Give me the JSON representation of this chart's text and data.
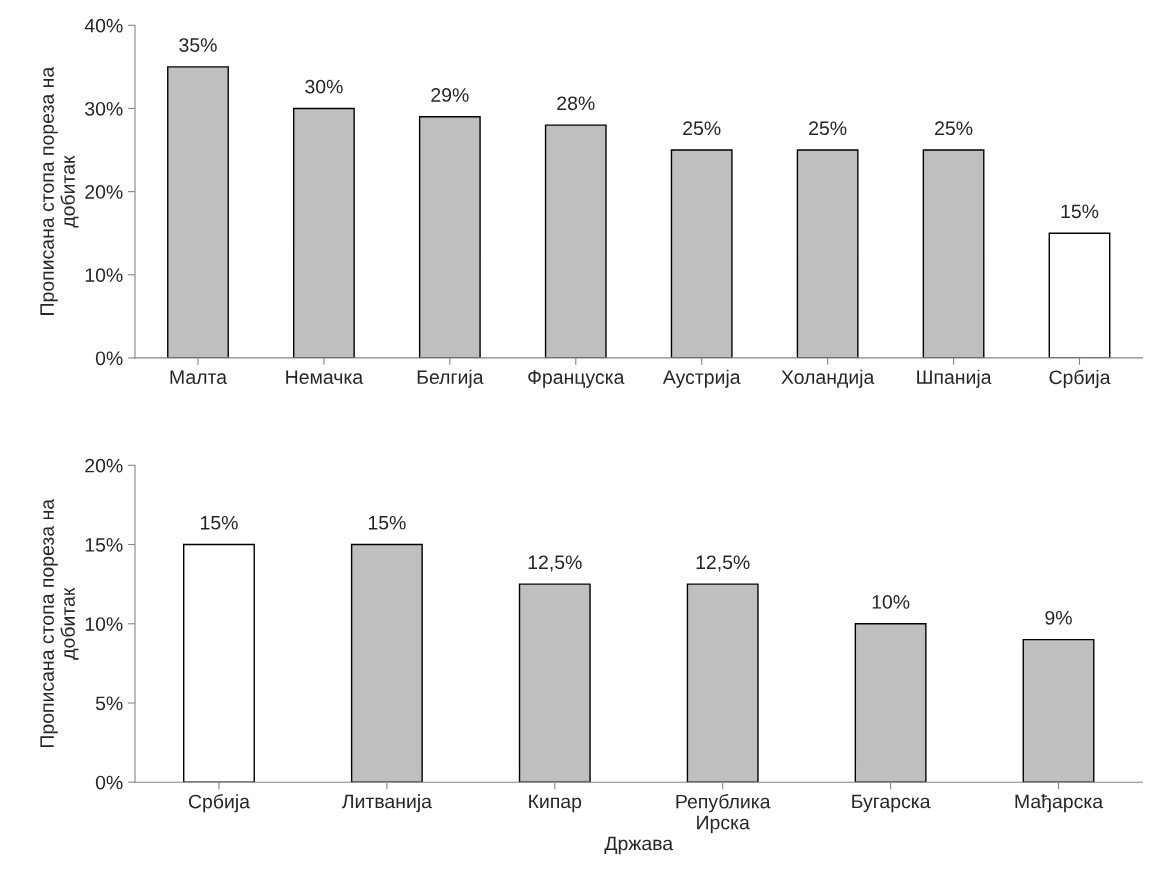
{
  "chart_data": [
    {
      "type": "bar",
      "ylabel": "Прописана стопа пореза на\nдобитак",
      "categories": [
        "Малта",
        "Немачка",
        "Белгија",
        "Француска",
        "Аустрија",
        "Холандија",
        "Шпанија",
        "Србија"
      ],
      "values": [
        35,
        30,
        29,
        28,
        25,
        25,
        25,
        15
      ],
      "colors": [
        "#bfbfbf",
        "#bfbfbf",
        "#bfbfbf",
        "#bfbfbf",
        "#bfbfbf",
        "#bfbfbf",
        "#bfbfbf",
        "#ffffff"
      ],
      "value_labels": [
        "35%",
        "30%",
        "29%",
        "28%",
        "25%",
        "25%",
        "25%",
        "15%"
      ],
      "ylim": [
        0,
        40
      ],
      "yticks": [
        {
          "value": 0,
          "label": "0%"
        },
        {
          "value": 10,
          "label": "10%"
        },
        {
          "value": 20,
          "label": "20%"
        },
        {
          "value": 30,
          "label": "30%"
        },
        {
          "value": 40,
          "label": "40%"
        }
      ],
      "grid": false,
      "legend": false
    },
    {
      "type": "bar",
      "ylabel": "Прописана стопа пореза на\nдобитак",
      "xlabel": "Држава",
      "categories": [
        "Србија",
        "Литванија",
        "Кипар",
        "Република\nИрска",
        "Бугарска",
        "Мађарска"
      ],
      "values": [
        15,
        15,
        12.5,
        12.5,
        10,
        9
      ],
      "colors": [
        "#ffffff",
        "#bfbfbf",
        "#bfbfbf",
        "#bfbfbf",
        "#bfbfbf",
        "#bfbfbf"
      ],
      "value_labels": [
        "15%",
        "15%",
        "12,5%",
        "12,5%",
        "10%",
        "9%"
      ],
      "ylim": [
        0,
        20
      ],
      "yticks": [
        {
          "value": 0,
          "label": "0%"
        },
        {
          "value": 5,
          "label": "5%"
        },
        {
          "value": 10,
          "label": "10%"
        },
        {
          "value": 15,
          "label": "15%"
        },
        {
          "value": 20,
          "label": "20%"
        }
      ],
      "grid": false,
      "legend": false
    }
  ]
}
